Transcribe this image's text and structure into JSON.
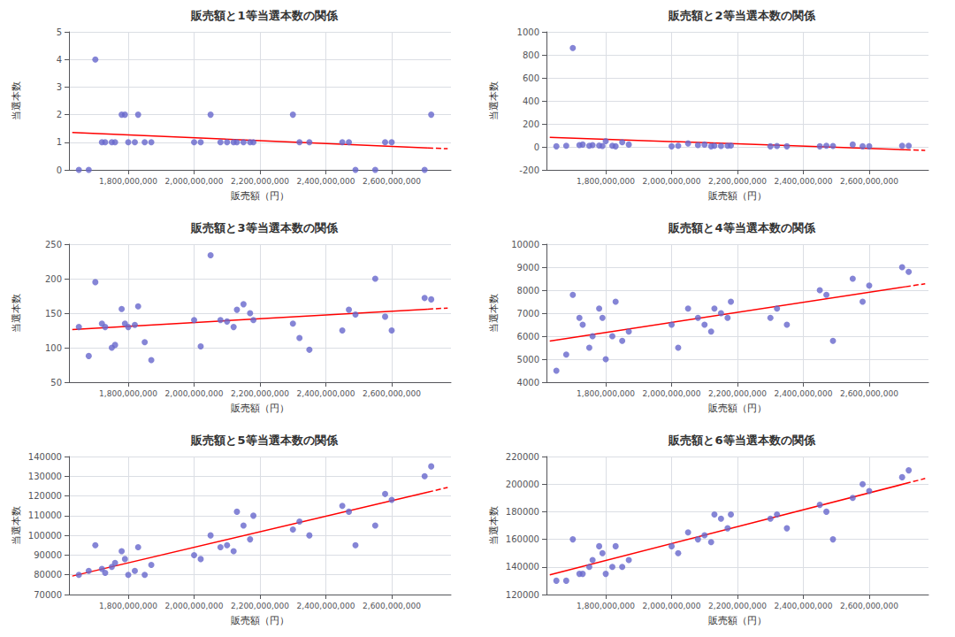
{
  "chart_data": [
    {
      "type": "scatter",
      "title": "販売額と1等当選本数の関係",
      "x_label": "販売額（円）",
      "y_label": "当選本数",
      "xlim": [
        1620000000,
        2780000000
      ],
      "xticks": [
        {
          "value": 1800000000,
          "label": "1,800,000,000"
        },
        {
          "value": 2000000000,
          "label": "2,000,000,000"
        },
        {
          "value": 2200000000,
          "label": "2,200,000,000"
        },
        {
          "value": 2400000000,
          "label": "2,400,000,000"
        },
        {
          "value": 2600000000,
          "label": "2,600,000,000"
        }
      ],
      "ylim": [
        0,
        5
      ],
      "yticks": [
        0,
        1,
        2,
        3,
        4,
        5
      ],
      "grid": true,
      "series": [
        {
          "type": "scatter",
          "color": "#6666cc",
          "marker": "circle",
          "x": [
            1650000000,
            1680000000,
            1700000000,
            1720000000,
            1730000000,
            1750000000,
            1760000000,
            1780000000,
            1790000000,
            1800000000,
            1820000000,
            1830000000,
            1850000000,
            1870000000,
            2000000000,
            2020000000,
            2050000000,
            2080000000,
            2100000000,
            2120000000,
            2130000000,
            2150000000,
            2170000000,
            2180000000,
            2300000000,
            2320000000,
            2350000000,
            2450000000,
            2470000000,
            2490000000,
            2550000000,
            2580000000,
            2600000000,
            2700000000,
            2720000000
          ],
          "values": [
            0,
            0,
            4,
            1,
            1,
            1,
            1,
            2,
            2,
            1,
            1,
            2,
            1,
            1,
            1,
            1,
            2,
            1,
            1,
            1,
            1,
            1,
            1,
            1,
            2,
            1,
            1,
            1,
            1,
            0,
            0,
            1,
            1,
            0,
            2
          ]
        },
        {
          "type": "line",
          "color": "red",
          "line_style": "solid",
          "x": [
            1630000000,
            2710000000
          ],
          "values": [
            1.3528,
            0.7966
          ]
        },
        {
          "type": "line",
          "color": "red",
          "line_style": "dashed",
          "x": [
            2710000000,
            2770000000
          ],
          "values": [
            0.7966,
            0.7657
          ]
        }
      ]
    },
    {
      "type": "scatter",
      "title": "販売額と2等当選本数の関係",
      "x_label": "販売額（円）",
      "y_label": "当選本数",
      "xlim": [
        1620000000,
        2780000000
      ],
      "xticks": [
        {
          "value": 1800000000,
          "label": "1,800,000,000"
        },
        {
          "value": 2000000000,
          "label": "2,000,000,000"
        },
        {
          "value": 2200000000,
          "label": "2,200,000,000"
        },
        {
          "value": 2400000000,
          "label": "2,400,000,000"
        },
        {
          "value": 2600000000,
          "label": "2,600,000,000"
        }
      ],
      "ylim": [
        -200,
        1000
      ],
      "yticks": [
        -200,
        0,
        200,
        400,
        600,
        800,
        1000
      ],
      "grid": true,
      "series": [
        {
          "type": "scatter",
          "color": "#6666cc",
          "marker": "circle",
          "x": [
            1650000000,
            1680000000,
            1700000000,
            1720000000,
            1730000000,
            1750000000,
            1760000000,
            1780000000,
            1790000000,
            1800000000,
            1820000000,
            1830000000,
            1850000000,
            1870000000,
            2000000000,
            2020000000,
            2050000000,
            2080000000,
            2100000000,
            2120000000,
            2130000000,
            2150000000,
            2170000000,
            2180000000,
            2300000000,
            2320000000,
            2350000000,
            2450000000,
            2470000000,
            2490000000,
            2550000000,
            2580000000,
            2600000000,
            2700000000,
            2720000000
          ],
          "values": [
            5,
            10,
            860,
            15,
            20,
            10,
            15,
            12,
            8,
            50,
            10,
            5,
            40,
            20,
            5,
            10,
            30,
            15,
            20,
            5,
            10,
            8,
            10,
            12,
            5,
            8,
            5,
            5,
            10,
            8,
            20,
            5,
            5,
            10,
            10
          ]
        },
        {
          "type": "line",
          "color": "red",
          "line_style": "solid",
          "x": [
            1630000000,
            2710000000
          ],
          "values": [
            83.559,
            -24.945
          ]
        },
        {
          "type": "line",
          "color": "red",
          "line_style": "dashed",
          "x": [
            2710000000,
            2770000000
          ],
          "values": [
            -24.945,
            -30.973
          ]
        }
      ]
    },
    {
      "type": "scatter",
      "title": "販売額と3等当選本数の関係",
      "x_label": "販売額（円）",
      "y_label": "当選本数",
      "xlim": [
        1620000000,
        2780000000
      ],
      "xticks": [
        {
          "value": 1800000000,
          "label": "1,800,000,000"
        },
        {
          "value": 2000000000,
          "label": "2,000,000,000"
        },
        {
          "value": 2200000000,
          "label": "2,200,000,000"
        },
        {
          "value": 2400000000,
          "label": "2,400,000,000"
        },
        {
          "value": 2600000000,
          "label": "2,600,000,000"
        }
      ],
      "ylim": [
        50,
        250
      ],
      "yticks": [
        50,
        100,
        150,
        200,
        250
      ],
      "grid": true,
      "series": [
        {
          "type": "scatter",
          "color": "#6666cc",
          "marker": "circle",
          "x": [
            1650000000,
            1680000000,
            1700000000,
            1720000000,
            1730000000,
            1750000000,
            1760000000,
            1780000000,
            1790000000,
            1800000000,
            1820000000,
            1830000000,
            1850000000,
            1870000000,
            2000000000,
            2020000000,
            2050000000,
            2080000000,
            2100000000,
            2120000000,
            2130000000,
            2150000000,
            2170000000,
            2180000000,
            2300000000,
            2320000000,
            2350000000,
            2450000000,
            2470000000,
            2490000000,
            2550000000,
            2580000000,
            2600000000,
            2700000000,
            2720000000
          ],
          "values": [
            130,
            88,
            195,
            135,
            130,
            100,
            104,
            156,
            135,
            130,
            133,
            160,
            108,
            82,
            140,
            102,
            234,
            140,
            138,
            130,
            155,
            163,
            150,
            140,
            135,
            114,
            97,
            125,
            155,
            148,
            200,
            145,
            125,
            172,
            170
          ]
        },
        {
          "type": "line",
          "color": "red",
          "line_style": "solid",
          "x": [
            1630000000,
            2710000000
          ],
          "values": [
            126.316,
            155.827
          ]
        },
        {
          "type": "line",
          "color": "red",
          "line_style": "dashed",
          "x": [
            2710000000,
            2770000000
          ],
          "values": [
            155.827,
            157.467
          ]
        }
      ]
    },
    {
      "type": "scatter",
      "title": "販売額と4等当選本数の関係",
      "x_label": "販売額（円）",
      "y_label": "当選本数",
      "xlim": [
        1620000000,
        2780000000
      ],
      "xticks": [
        {
          "value": 1800000000,
          "label": "1,800,000,000"
        },
        {
          "value": 2000000000,
          "label": "2,000,000,000"
        },
        {
          "value": 2200000000,
          "label": "2,200,000,000"
        },
        {
          "value": 2400000000,
          "label": "2,400,000,000"
        },
        {
          "value": 2600000000,
          "label": "2,600,000,000"
        }
      ],
      "ylim": [
        4000,
        10000
      ],
      "yticks": [
        4000,
        5000,
        6000,
        7000,
        8000,
        9000,
        10000
      ],
      "grid": true,
      "series": [
        {
          "type": "scatter",
          "color": "#6666cc",
          "marker": "circle",
          "x": [
            1650000000,
            1680000000,
            1700000000,
            1720000000,
            1730000000,
            1750000000,
            1760000000,
            1780000000,
            1790000000,
            1800000000,
            1820000000,
            1830000000,
            1850000000,
            1870000000,
            2000000000,
            2020000000,
            2050000000,
            2080000000,
            2100000000,
            2120000000,
            2130000000,
            2150000000,
            2170000000,
            2180000000,
            2300000000,
            2320000000,
            2350000000,
            2450000000,
            2470000000,
            2490000000,
            2550000000,
            2580000000,
            2600000000,
            2700000000,
            2720000000
          ],
          "values": [
            4500,
            5200,
            7800,
            6800,
            6500,
            5500,
            6000,
            7200,
            6800,
            5000,
            6000,
            7500,
            5800,
            6200,
            6500,
            5500,
            7200,
            6800,
            6500,
            6200,
            7200,
            7000,
            6800,
            7500,
            6800,
            7200,
            6500,
            8000,
            7800,
            5800,
            8500,
            7500,
            8200,
            9000,
            8800
          ]
        },
        {
          "type": "line",
          "color": "red",
          "line_style": "solid",
          "x": [
            1630000000,
            2710000000
          ],
          "values": [
            5792.15,
            8149.01
          ]
        },
        {
          "type": "line",
          "color": "red",
          "line_style": "dashed",
          "x": [
            2710000000,
            2770000000
          ],
          "values": [
            8149.01,
            8279.95
          ]
        }
      ]
    },
    {
      "type": "scatter",
      "title": "販売額と5等当選本数の関係",
      "x_label": "販売額（円）",
      "y_label": "当選本数",
      "xlim": [
        1620000000,
        2780000000
      ],
      "xticks": [
        {
          "value": 1800000000,
          "label": "1,800,000,000"
        },
        {
          "value": 2000000000,
          "label": "2,000,000,000"
        },
        {
          "value": 2200000000,
          "label": "2,200,000,000"
        },
        {
          "value": 2400000000,
          "label": "2,400,000,000"
        },
        {
          "value": 2600000000,
          "label": "2,600,000,000"
        }
      ],
      "ylim": [
        70000,
        140000
      ],
      "yticks": [
        70000,
        80000,
        90000,
        100000,
        110000,
        120000,
        130000,
        140000
      ],
      "grid": true,
      "series": [
        {
          "type": "scatter",
          "color": "#6666cc",
          "marker": "circle",
          "x": [
            1650000000,
            1680000000,
            1700000000,
            1720000000,
            1730000000,
            1750000000,
            1760000000,
            1780000000,
            1790000000,
            1800000000,
            1820000000,
            1830000000,
            1850000000,
            1870000000,
            2000000000,
            2020000000,
            2050000000,
            2080000000,
            2100000000,
            2120000000,
            2130000000,
            2150000000,
            2170000000,
            2180000000,
            2300000000,
            2320000000,
            2350000000,
            2450000000,
            2470000000,
            2490000000,
            2550000000,
            2580000000,
            2600000000,
            2700000000,
            2720000000
          ],
          "values": [
            80000,
            82000,
            95000,
            83000,
            81000,
            84000,
            86000,
            92000,
            88000,
            80000,
            82000,
            94000,
            80000,
            85000,
            90000,
            88000,
            100000,
            94000,
            95000,
            92000,
            112000,
            105000,
            98000,
            110000,
            103000,
            107000,
            100000,
            115000,
            112000,
            95000,
            105000,
            121000,
            118000,
            130000,
            135000
          ]
        },
        {
          "type": "line",
          "color": "red",
          "line_style": "solid",
          "x": [
            1630000000,
            2710000000
          ],
          "values": [
            79371.3,
            121945.3
          ]
        },
        {
          "type": "line",
          "color": "red",
          "line_style": "dashed",
          "x": [
            2710000000,
            2770000000
          ],
          "values": [
            121945.3,
            124310.6
          ]
        }
      ]
    },
    {
      "type": "scatter",
      "title": "販売額と6等当選本数の関係",
      "x_label": "販売額（円）",
      "y_label": "当選本数",
      "xlim": [
        1620000000,
        2780000000
      ],
      "xticks": [
        {
          "value": 1800000000,
          "label": "1,800,000,000"
        },
        {
          "value": 2000000000,
          "label": "2,000,000,000"
        },
        {
          "value": 2200000000,
          "label": "2,200,000,000"
        },
        {
          "value": 2400000000,
          "label": "2,400,000,000"
        },
        {
          "value": 2600000000,
          "label": "2,600,000,000"
        }
      ],
      "ylim": [
        120000,
        220000
      ],
      "yticks": [
        120000,
        140000,
        160000,
        180000,
        200000,
        220000
      ],
      "grid": true,
      "series": [
        {
          "type": "scatter",
          "color": "#6666cc",
          "marker": "circle",
          "x": [
            1650000000,
            1680000000,
            1700000000,
            1720000000,
            1730000000,
            1750000000,
            1760000000,
            1780000000,
            1790000000,
            1800000000,
            1820000000,
            1830000000,
            1850000000,
            1870000000,
            2000000000,
            2020000000,
            2050000000,
            2080000000,
            2100000000,
            2120000000,
            2130000000,
            2150000000,
            2170000000,
            2180000000,
            2300000000,
            2320000000,
            2350000000,
            2450000000,
            2470000000,
            2490000000,
            2550000000,
            2580000000,
            2600000000,
            2700000000,
            2720000000
          ],
          "values": [
            130000,
            130000,
            160000,
            135000,
            135000,
            140000,
            145000,
            155000,
            150000,
            135000,
            140000,
            155000,
            140000,
            145000,
            155000,
            150000,
            165000,
            160000,
            163000,
            158000,
            178000,
            175000,
            168000,
            178000,
            175000,
            178000,
            168000,
            185000,
            180000,
            160000,
            190000,
            200000,
            195000,
            205000,
            210000
          ]
        },
        {
          "type": "line",
          "color": "red",
          "line_style": "solid",
          "x": [
            1630000000,
            2710000000
          ],
          "values": [
            134222.1,
            200396.4
          ]
        },
        {
          "type": "line",
          "color": "red",
          "line_style": "dashed",
          "x": [
            2710000000,
            2770000000
          ],
          "values": [
            200396.4,
            204072.7
          ]
        }
      ]
    }
  ]
}
